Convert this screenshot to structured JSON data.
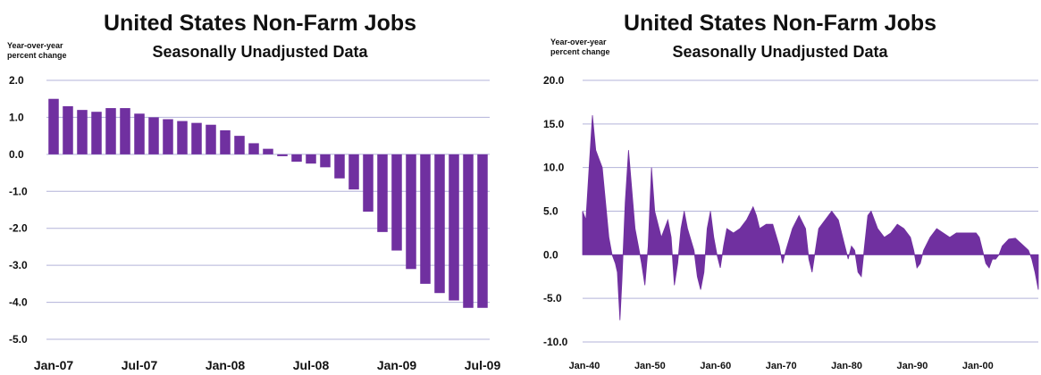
{
  "chart_data": [
    {
      "type": "bar",
      "title": "United States Non-Farm Jobs",
      "subtitle": "Seasonally Unadjusted Data",
      "ylabel": "Year-over-year percent change",
      "ylim": [
        -5.0,
        2.0
      ],
      "yticks": [
        "2.0",
        "1.0",
        "0.0",
        "-1.0",
        "-2.0",
        "-3.0",
        "-4.0",
        "-5.0"
      ],
      "xtick_labels": [
        "Jan-07",
        "Jul-07",
        "Jan-08",
        "Jul-08",
        "Jan-09",
        "Jul-09"
      ],
      "categories": [
        "Jan-07",
        "Feb-07",
        "Mar-07",
        "Apr-07",
        "May-07",
        "Jun-07",
        "Jul-07",
        "Aug-07",
        "Sep-07",
        "Oct-07",
        "Nov-07",
        "Dec-07",
        "Jan-08",
        "Feb-08",
        "Mar-08",
        "Apr-08",
        "May-08",
        "Jun-08",
        "Jul-08",
        "Aug-08",
        "Sep-08",
        "Oct-08",
        "Nov-08",
        "Dec-08",
        "Jan-09",
        "Feb-09",
        "Mar-09",
        "Apr-09",
        "May-09",
        "Jun-09",
        "Jul-09"
      ],
      "values": [
        1.5,
        1.3,
        1.2,
        1.15,
        1.25,
        1.25,
        1.1,
        1.0,
        0.95,
        0.9,
        0.85,
        0.8,
        0.65,
        0.5,
        0.3,
        0.15,
        -0.05,
        -0.2,
        -0.25,
        -0.35,
        -0.65,
        -0.95,
        -1.55,
        -2.1,
        -2.6,
        -3.1,
        -3.5,
        -3.75,
        -3.95,
        -4.15,
        -4.15
      ],
      "grid": true,
      "color": "#7030A0"
    },
    {
      "type": "area",
      "title": "United States Non-Farm Jobs",
      "subtitle": "Seasonally Unadjusted Data",
      "ylabel": "Year-over-year percent change",
      "ylim": [
        -10.0,
        20.0
      ],
      "yticks": [
        "20.0",
        "15.0",
        "10.0",
        "5.0",
        "0.0",
        "-5.0",
        "-10.0"
      ],
      "xtick_labels": [
        "Jan-40",
        "Jan-50",
        "Jan-60",
        "Jan-70",
        "Jan-80",
        "Jan-90",
        "Jan-00"
      ],
      "xlim": [
        1940,
        2009.5
      ],
      "x": [
        1940.0,
        1940.5,
        1941.0,
        1941.5,
        1942.0,
        1942.5,
        1943.0,
        1943.5,
        1944.0,
        1944.5,
        1945.0,
        1945.3,
        1945.7,
        1946.0,
        1946.5,
        1947.0,
        1948.0,
        1948.5,
        1949.0,
        1949.5,
        1950.0,
        1950.5,
        1951.0,
        1952.0,
        1953.0,
        1953.5,
        1954.0,
        1954.5,
        1955.0,
        1955.5,
        1956.0,
        1957.0,
        1957.5,
        1958.0,
        1958.5,
        1959.0,
        1959.5,
        1960.0,
        1960.5,
        1961.0,
        1961.5,
        1962.0,
        1963.0,
        1964.0,
        1965.0,
        1966.0,
        1966.5,
        1967.0,
        1968.0,
        1969.0,
        1970.0,
        1970.5,
        1971.0,
        1972.0,
        1973.0,
        1974.0,
        1974.5,
        1975.0,
        1975.5,
        1976.0,
        1977.0,
        1978.0,
        1979.0,
        1980.0,
        1980.5,
        1981.0,
        1981.5,
        1982.0,
        1982.5,
        1983.0,
        1983.5,
        1984.0,
        1985.0,
        1986.0,
        1987.0,
        1988.0,
        1989.0,
        1990.0,
        1990.5,
        1991.0,
        1991.5,
        1992.0,
        1993.0,
        1994.0,
        1995.0,
        1996.0,
        1997.0,
        1998.0,
        1999.0,
        2000.0,
        2000.5,
        2001.0,
        2001.5,
        2002.0,
        2002.5,
        2003.0,
        2003.5,
        2004.0,
        2005.0,
        2006.0,
        2007.0,
        2008.0,
        2008.5,
        2009.0,
        2009.5
      ],
      "values": [
        5.0,
        4.0,
        10.0,
        16.0,
        12.0,
        11.0,
        10.0,
        6.0,
        2.0,
        0.0,
        -1.0,
        -2.0,
        -7.5,
        -3.0,
        6.0,
        12.0,
        3.0,
        1.0,
        -1.0,
        -3.5,
        1.0,
        10.0,
        5.0,
        2.0,
        4.0,
        2.0,
        -3.5,
        -1.0,
        3.0,
        5.0,
        3.0,
        0.5,
        -2.5,
        -4.0,
        -2.0,
        3.0,
        5.0,
        2.0,
        0.0,
        -1.5,
        1.0,
        3.0,
        2.5,
        3.0,
        4.0,
        5.5,
        4.5,
        3.0,
        3.5,
        3.5,
        1.0,
        -1.0,
        0.5,
        3.0,
        4.5,
        3.0,
        -0.5,
        -2.0,
        0.5,
        3.0,
        4.0,
        5.0,
        4.0,
        1.0,
        -0.5,
        1.0,
        0.5,
        -2.0,
        -2.5,
        1.0,
        4.5,
        5.0,
        3.0,
        2.0,
        2.5,
        3.5,
        3.0,
        2.0,
        0.5,
        -1.5,
        -1.0,
        0.5,
        2.0,
        3.0,
        2.5,
        2.0,
        2.5,
        2.5,
        2.5,
        2.5,
        2.0,
        0.5,
        -1.0,
        -1.5,
        -0.5,
        -0.5,
        0.0,
        1.0,
        1.8,
        1.9,
        1.2,
        0.5,
        -0.5,
        -2.0,
        -4.0
      ],
      "grid": true,
      "color": "#7030A0"
    }
  ]
}
